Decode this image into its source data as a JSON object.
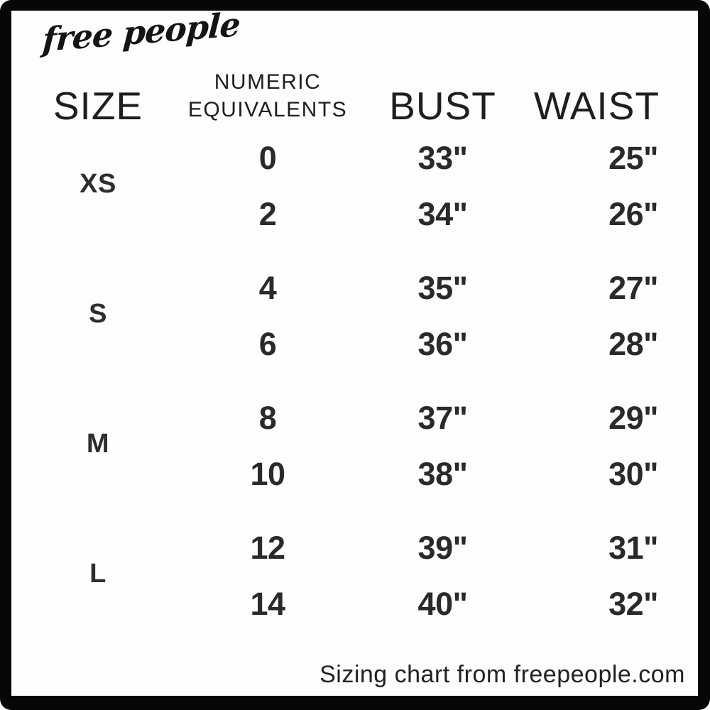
{
  "brand": {
    "logo_text": "free people"
  },
  "table": {
    "headers": {
      "size": "SIZE",
      "numeric_line1": "NUMERIC",
      "numeric_line2": "EQUIVALENTS",
      "bust": "BUST",
      "waist": "WAIST"
    },
    "rows": [
      {
        "size": "XS",
        "numeric": [
          "0",
          "2"
        ],
        "bust": [
          "33\"",
          "34\""
        ],
        "waist": [
          "25\"",
          "26\""
        ]
      },
      {
        "size": "S",
        "numeric": [
          "4",
          "6"
        ],
        "bust": [
          "35\"",
          "36\""
        ],
        "waist": [
          "27\"",
          "28\""
        ]
      },
      {
        "size": "M",
        "numeric": [
          "8",
          "10"
        ],
        "bust": [
          "37\"",
          "38\""
        ],
        "waist": [
          "29\"",
          "30\""
        ]
      },
      {
        "size": "L",
        "numeric": [
          "12",
          "14"
        ],
        "bust": [
          "39\"",
          "40\""
        ],
        "waist": [
          "31\"",
          "32\""
        ]
      }
    ]
  },
  "caption": "Sizing chart from freepeople.com",
  "colors": {
    "frame": "#070707",
    "page_background": "#fdfdfd",
    "row_dark_shade": "#dadada",
    "row_light_shade": "#f5f5f5",
    "text": "#2a2a2a"
  },
  "chart_data": {
    "type": "table",
    "title": "Sizing chart from freepeople.com",
    "columns": [
      "SIZE",
      "NUMERIC EQUIVALENTS",
      "BUST",
      "WAIST"
    ],
    "rows": [
      [
        "XS",
        "0, 2",
        "33\", 34\"",
        "25\", 26\""
      ],
      [
        "S",
        "4, 6",
        "35\", 36\"",
        "27\", 28\""
      ],
      [
        "M",
        "8, 10",
        "37\", 38\"",
        "29\", 30\""
      ],
      [
        "L",
        "12, 14",
        "39\", 40\"",
        "31\", 32\""
      ]
    ]
  }
}
